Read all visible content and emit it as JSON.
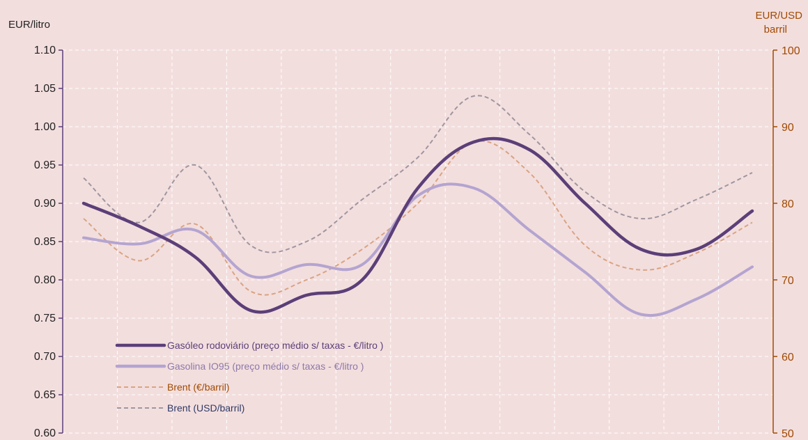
{
  "chart_data": {
    "type": "line",
    "y_left_label": "EUR/litro",
    "y_right_label_line1": "EUR/USD",
    "y_right_label_line2": "barril",
    "y_left_range": [
      0.6,
      1.1
    ],
    "y_left_ticks": [
      "0.60",
      "0.65",
      "0.70",
      "0.75",
      "0.80",
      "0.85",
      "0.90",
      "0.95",
      "1.00",
      "1.05",
      "1.10"
    ],
    "y_right_range": [
      50,
      100
    ],
    "y_right_ticks": [
      "50",
      "60",
      "70",
      "80",
      "90",
      "100"
    ],
    "x_points": 13,
    "grid": true,
    "legend_position": "bottom-left",
    "series": [
      {
        "name": "Gasóleo rodoviário (preço médio s/ taxas - €/litro )",
        "axis": "left",
        "color": "#5b3f78",
        "style": "solid-thick",
        "values": [
          0.9,
          0.87,
          0.83,
          0.76,
          0.78,
          0.8,
          0.92,
          0.98,
          0.97,
          0.9,
          0.84,
          0.84,
          0.89
        ]
      },
      {
        "name": "Gasolina IO95 (preço médio s/ taxas - €/litro )",
        "axis": "left",
        "color": "#b4a4d0",
        "style": "solid-thick",
        "values": [
          0.855,
          0.847,
          0.865,
          0.805,
          0.82,
          0.82,
          0.91,
          0.92,
          0.865,
          0.81,
          0.755,
          0.775,
          0.817
        ]
      },
      {
        "name": "Brent (€/barril)",
        "axis": "right",
        "color": "#d8a482",
        "style": "dashed",
        "values": [
          78,
          72.5,
          77.3,
          68.5,
          70,
          74,
          80,
          88,
          84,
          74.5,
          71.3,
          73.5,
          77.5
        ]
      },
      {
        "name": "Brent (USD/barril)",
        "axis": "right",
        "color": "#9e96a0",
        "style": "dashed",
        "values": [
          83.3,
          77.5,
          85,
          74.5,
          75,
          80.5,
          86,
          94,
          89,
          81.5,
          78,
          80.5,
          84
        ]
      }
    ]
  }
}
